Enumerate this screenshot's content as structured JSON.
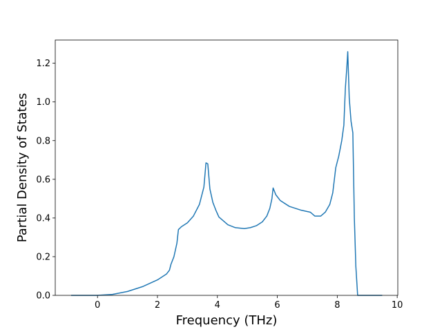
{
  "chart_data": {
    "type": "line",
    "xlabel": "Frequency (THz)",
    "ylabel": "Partial Density of States",
    "x": [
      -0.88,
      0,
      0.5,
      1,
      1.5,
      2,
      2.3,
      2.4,
      2.45,
      2.55,
      2.65,
      2.7,
      2.8,
      3,
      3.2,
      3.4,
      3.55,
      3.62,
      3.68,
      3.75,
      3.85,
      3.95,
      4.05,
      4.2,
      4.35,
      4.6,
      4.9,
      5.1,
      5.3,
      5.5,
      5.65,
      5.75,
      5.82,
      5.86,
      5.95,
      6.1,
      6.4,
      6.8,
      7.1,
      7.25,
      7.45,
      7.6,
      7.75,
      7.85,
      7.95,
      8.05,
      8.15,
      8.22,
      8.27,
      8.32,
      8.35,
      8.4,
      8.46,
      8.52,
      8.57,
      8.62,
      8.68,
      9.0,
      9.5
    ],
    "series": [
      {
        "color": "#1f77b4",
        "values": [
          0,
          0,
          0.005,
          0.02,
          0.045,
          0.08,
          0.11,
          0.13,
          0.16,
          0.2,
          0.27,
          0.34,
          0.355,
          0.375,
          0.41,
          0.47,
          0.56,
          0.685,
          0.68,
          0.55,
          0.48,
          0.44,
          0.405,
          0.385,
          0.365,
          0.35,
          0.345,
          0.35,
          0.36,
          0.38,
          0.41,
          0.45,
          0.5,
          0.555,
          0.52,
          0.49,
          0.46,
          0.44,
          0.43,
          0.41,
          0.41,
          0.43,
          0.47,
          0.53,
          0.66,
          0.72,
          0.8,
          0.88,
          1.07,
          1.18,
          1.26,
          1.02,
          0.9,
          0.84,
          0.4,
          0.15,
          0,
          0,
          0
        ]
      }
    ],
    "xlim": [
      -1.41,
      10.02
    ],
    "ylim": [
      0,
      1.32
    ],
    "xticks": [
      0,
      2,
      4,
      6,
      8,
      10
    ],
    "yticks": [
      {
        "value": 0,
        "label": "0.0"
      },
      0.2,
      0.4,
      0.6,
      0.8,
      {
        "value": 1,
        "label": "1.0"
      },
      1.2
    ]
  }
}
